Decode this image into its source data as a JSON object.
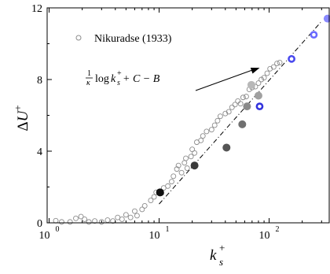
{
  "chart_data": {
    "type": "scatter",
    "xscale": "log",
    "xlim": [
      1,
      350
    ],
    "ylim": [
      0,
      12
    ],
    "xlabel": {
      "base": "k",
      "sub": "s",
      "sup": "+"
    },
    "ylabel": {
      "prefix": "Δ",
      "base": "U",
      "sup": "+"
    },
    "x_ticks": [
      {
        "value": 1,
        "label_base": "10",
        "label_exp": "0"
      },
      {
        "value": 10,
        "label_base": "10",
        "label_exp": "1"
      },
      {
        "value": 100,
        "label_base": "10",
        "label_exp": "2"
      }
    ],
    "y_ticks": [
      {
        "value": 0,
        "label": "0"
      },
      {
        "value": 4,
        "label": "4"
      },
      {
        "value": 8,
        "label": "8"
      },
      {
        "value": 12,
        "label": "12"
      }
    ],
    "grid": false,
    "legend": {
      "placement": "top-left",
      "label": "Nikuradse (1933)"
    },
    "annotation": {
      "frac_num": "1",
      "frac_den": "κ",
      "log": "log",
      "k": "k",
      "k_sub": "s",
      "k_sup": "+",
      "rest": " + C − B",
      "arrow_to": {
        "x": 100,
        "y": 8.7
      }
    },
    "series": [
      {
        "name": "Nikuradse (1933)",
        "marker": "open-circle",
        "color": "#8c8c8c",
        "points": [
          [
            1.15,
            0.12
          ],
          [
            1.3,
            0.05
          ],
          [
            1.55,
            0.05
          ],
          [
            1.75,
            0.25
          ],
          [
            1.95,
            0.35
          ],
          [
            2.1,
            0.2
          ],
          [
            2.3,
            0.05
          ],
          [
            2.6,
            0.1
          ],
          [
            3.0,
            0.05
          ],
          [
            3.4,
            0.15
          ],
          [
            3.8,
            0.1
          ],
          [
            4.2,
            0.3
          ],
          [
            4.6,
            0.2
          ],
          [
            5.0,
            0.45
          ],
          [
            5.5,
            0.3
          ],
          [
            6.0,
            0.65
          ],
          [
            6.3,
            0.4
          ],
          [
            7.0,
            0.75
          ],
          [
            7.4,
            0.95
          ],
          [
            8.4,
            1.25
          ],
          [
            9.0,
            1.45
          ],
          [
            9.4,
            1.7
          ],
          [
            10.5,
            1.65
          ],
          [
            11.0,
            1.95
          ],
          [
            12.0,
            2.05
          ],
          [
            13.0,
            2.3
          ],
          [
            13.5,
            2.6
          ],
          [
            14.5,
            3.0
          ],
          [
            15.0,
            3.2
          ],
          [
            16.0,
            2.8
          ],
          [
            17.0,
            3.35
          ],
          [
            17.5,
            3.6
          ],
          [
            18.0,
            3.05
          ],
          [
            19.5,
            3.7
          ],
          [
            20.0,
            4.1
          ],
          [
            21.0,
            3.9
          ],
          [
            22.0,
            4.5
          ],
          [
            24.0,
            4.6
          ],
          [
            25.0,
            4.85
          ],
          [
            27.0,
            5.1
          ],
          [
            30.0,
            5.2
          ],
          [
            32.0,
            5.45
          ],
          [
            34.0,
            5.7
          ],
          [
            36.0,
            5.95
          ],
          [
            40.0,
            6.1
          ],
          [
            43.0,
            6.2
          ],
          [
            46.0,
            6.45
          ],
          [
            49.0,
            6.6
          ],
          [
            52.0,
            6.8
          ],
          [
            55.0,
            6.65
          ],
          [
            58.0,
            7.0
          ],
          [
            62.0,
            7.05
          ],
          [
            66.0,
            7.45
          ],
          [
            70.0,
            7.55
          ],
          [
            75.0,
            7.6
          ],
          [
            80.0,
            7.8
          ],
          [
            85.0,
            8.0
          ],
          [
            90.0,
            8.1
          ],
          [
            96.0,
            8.35
          ],
          [
            102.0,
            8.6
          ],
          [
            110.0,
            8.7
          ],
          [
            118.0,
            8.9
          ],
          [
            125.0,
            8.95
          ]
        ]
      },
      {
        "name": "",
        "marker": "filled-circle",
        "points": [
          {
            "x": 10.2,
            "y": 1.7,
            "color": "#111111"
          },
          {
            "x": 21.0,
            "y": 3.2,
            "color": "#3a3a3a"
          },
          {
            "x": 41.0,
            "y": 4.2,
            "color": "#555555"
          },
          {
            "x": 57.0,
            "y": 5.5,
            "color": "#707070"
          },
          {
            "x": 63.0,
            "y": 6.5,
            "color": "#8a8a8a"
          },
          {
            "x": 80.0,
            "y": 7.1,
            "color": "#a0a0a0"
          },
          {
            "x": 69.0,
            "y": 7.7,
            "color": "#b8b8b8"
          },
          {
            "x": 82.0,
            "y": 6.5,
            "color": "#3333dd",
            "ring": true
          },
          {
            "x": 160.0,
            "y": 9.15,
            "color": "#4a4aee",
            "ring": true
          },
          {
            "x": 255.0,
            "y": 10.5,
            "color": "#6a6aff",
            "ring": true
          },
          {
            "x": 340.0,
            "y": 11.4,
            "color": "#8888ff"
          }
        ]
      },
      {
        "name": "",
        "type": "line",
        "style": "dash-dot",
        "x": [
          10,
          300
        ],
        "y": [
          1.05,
          11.25
        ]
      }
    ]
  }
}
